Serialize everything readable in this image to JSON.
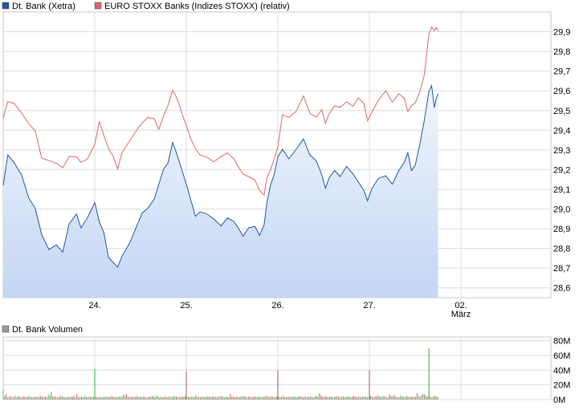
{
  "chart_data": [
    {
      "type": "line",
      "legend": [
        {
          "name": "Dt. Bank (Xetra)",
          "color": "#1f57a4"
        },
        {
          "name": "EURO STOXX Banks (Indizes STOXX) (relativ)",
          "color": "#e06666"
        }
      ],
      "x_tick_labels": [
        {
          "label": "24.",
          "sub": ""
        },
        {
          "label": "25.",
          "sub": ""
        },
        {
          "label": "26.",
          "sub": ""
        },
        {
          "label": "27.",
          "sub": ""
        },
        {
          "label": "02.",
          "sub": "März"
        }
      ],
      "y_ticks": [
        28.6,
        28.7,
        28.8,
        28.9,
        29.0,
        29.1,
        29.2,
        29.3,
        29.4,
        29.5,
        29.6,
        29.7,
        29.8,
        29.9
      ],
      "y_tick_labels": [
        "28,6",
        "28,7",
        "28,8",
        "28,9",
        "29,0",
        "29,1",
        "29,2",
        "29,3",
        "29,4",
        "29,5",
        "29,6",
        "29,7",
        "29,8",
        "29,9"
      ],
      "ylim": [
        28.55,
        30.0
      ],
      "grid": true,
      "series": [
        {
          "name": "Dt. Bank (Xetra)",
          "color": "#1f57a4",
          "fill": true,
          "points": [
            [
              0.0,
              29.12
            ],
            [
              0.05,
              29.28
            ],
            [
              0.12,
              29.24
            ],
            [
              0.2,
              29.17
            ],
            [
              0.28,
              29.05
            ],
            [
              0.35,
              29.0
            ],
            [
              0.42,
              28.87
            ],
            [
              0.5,
              28.8
            ],
            [
              0.58,
              28.82
            ],
            [
              0.65,
              28.78
            ],
            [
              0.72,
              28.92
            ],
            [
              0.8,
              28.97
            ],
            [
              0.85,
              28.9
            ],
            [
              0.92,
              28.95
            ],
            [
              1.0,
              29.03
            ],
            [
              1.05,
              28.93
            ],
            [
              1.1,
              28.88
            ],
            [
              1.15,
              28.76
            ],
            [
              1.2,
              28.73
            ],
            [
              1.25,
              28.7
            ],
            [
              1.3,
              28.76
            ],
            [
              1.38,
              28.82
            ],
            [
              1.45,
              28.9
            ],
            [
              1.52,
              28.98
            ],
            [
              1.58,
              29.0
            ],
            [
              1.65,
              29.05
            ],
            [
              1.7,
              29.12
            ],
            [
              1.75,
              29.2
            ],
            [
              1.8,
              29.24
            ],
            [
              1.85,
              29.34
            ],
            [
              1.88,
              29.3
            ],
            [
              1.92,
              29.25
            ],
            [
              1.96,
              29.18
            ],
            [
              2.0,
              29.13
            ],
            [
              2.05,
              29.05
            ],
            [
              2.1,
              28.96
            ],
            [
              2.15,
              28.98
            ],
            [
              2.22,
              28.97
            ],
            [
              2.3,
              28.95
            ],
            [
              2.38,
              28.92
            ],
            [
              2.45,
              28.96
            ],
            [
              2.52,
              28.94
            ],
            [
              2.58,
              28.9
            ],
            [
              2.62,
              28.86
            ],
            [
              2.68,
              28.9
            ],
            [
              2.75,
              28.91
            ],
            [
              2.8,
              28.86
            ],
            [
              2.85,
              28.92
            ],
            [
              2.88,
              29.03
            ],
            [
              2.92,
              29.12
            ],
            [
              2.96,
              29.18
            ],
            [
              3.0,
              29.26
            ],
            [
              3.05,
              29.3
            ],
            [
              3.12,
              29.25
            ],
            [
              3.2,
              29.3
            ],
            [
              3.28,
              29.36
            ],
            [
              3.35,
              29.28
            ],
            [
              3.42,
              29.25
            ],
            [
              3.48,
              29.18
            ],
            [
              3.52,
              29.1
            ],
            [
              3.56,
              29.16
            ],
            [
              3.62,
              29.2
            ],
            [
              3.68,
              29.17
            ],
            [
              3.75,
              29.22
            ],
            [
              3.82,
              29.18
            ],
            [
              3.88,
              29.14
            ],
            [
              3.94,
              29.1
            ],
            [
              3.98,
              29.04
            ],
            [
              4.03,
              29.1
            ],
            [
              4.1,
              29.15
            ],
            [
              4.18,
              29.17
            ],
            [
              4.25,
              29.13
            ],
            [
              4.32,
              29.2
            ],
            [
              4.38,
              29.24
            ],
            [
              4.42,
              29.28
            ],
            [
              4.46,
              29.2
            ],
            [
              4.5,
              29.22
            ],
            [
              4.55,
              29.32
            ],
            [
              4.6,
              29.45
            ],
            [
              4.65,
              29.6
            ],
            [
              4.68,
              29.62
            ],
            [
              4.71,
              29.52
            ],
            [
              4.73,
              29.56
            ],
            [
              4.75,
              29.58
            ]
          ]
        },
        {
          "name": "EURO STOXX Banks (Indizes STOXX) (relativ)",
          "color": "#e06666",
          "fill": false,
          "points": [
            [
              0.0,
              29.46
            ],
            [
              0.05,
              29.54
            ],
            [
              0.12,
              29.53
            ],
            [
              0.2,
              29.49
            ],
            [
              0.28,
              29.44
            ],
            [
              0.35,
              29.4
            ],
            [
              0.42,
              29.26
            ],
            [
              0.5,
              29.24
            ],
            [
              0.58,
              29.23
            ],
            [
              0.65,
              29.21
            ],
            [
              0.72,
              29.27
            ],
            [
              0.8,
              29.27
            ],
            [
              0.85,
              29.24
            ],
            [
              0.92,
              29.26
            ],
            [
              1.0,
              29.33
            ],
            [
              1.05,
              29.45
            ],
            [
              1.1,
              29.37
            ],
            [
              1.15,
              29.3
            ],
            [
              1.2,
              29.27
            ],
            [
              1.25,
              29.21
            ],
            [
              1.3,
              29.29
            ],
            [
              1.38,
              29.35
            ],
            [
              1.45,
              29.4
            ],
            [
              1.52,
              29.44
            ],
            [
              1.58,
              29.47
            ],
            [
              1.65,
              29.46
            ],
            [
              1.7,
              29.41
            ],
            [
              1.75,
              29.47
            ],
            [
              1.8,
              29.52
            ],
            [
              1.85,
              29.6
            ],
            [
              1.88,
              29.58
            ],
            [
              1.92,
              29.53
            ],
            [
              1.96,
              29.48
            ],
            [
              2.0,
              29.42
            ],
            [
              2.05,
              29.35
            ],
            [
              2.1,
              29.31
            ],
            [
              2.15,
              29.28
            ],
            [
              2.22,
              29.27
            ],
            [
              2.3,
              29.24
            ],
            [
              2.38,
              29.26
            ],
            [
              2.45,
              29.28
            ],
            [
              2.52,
              29.25
            ],
            [
              2.58,
              29.2
            ],
            [
              2.62,
              29.18
            ],
            [
              2.68,
              29.17
            ],
            [
              2.75,
              29.15
            ],
            [
              2.8,
              29.1
            ],
            [
              2.85,
              29.07
            ],
            [
              2.88,
              29.16
            ],
            [
              2.92,
              29.2
            ],
            [
              2.96,
              29.25
            ],
            [
              3.0,
              29.32
            ],
            [
              3.05,
              29.48
            ],
            [
              3.12,
              29.47
            ],
            [
              3.2,
              29.5
            ],
            [
              3.28,
              29.57
            ],
            [
              3.35,
              29.48
            ],
            [
              3.42,
              29.46
            ],
            [
              3.48,
              29.5
            ],
            [
              3.52,
              29.44
            ],
            [
              3.56,
              29.48
            ],
            [
              3.62,
              29.52
            ],
            [
              3.68,
              29.51
            ],
            [
              3.75,
              29.54
            ],
            [
              3.82,
              29.52
            ],
            [
              3.88,
              29.56
            ],
            [
              3.94,
              29.53
            ],
            [
              3.98,
              29.45
            ],
            [
              4.03,
              29.5
            ],
            [
              4.1,
              29.56
            ],
            [
              4.18,
              29.6
            ],
            [
              4.25,
              29.54
            ],
            [
              4.32,
              29.58
            ],
            [
              4.38,
              29.56
            ],
            [
              4.42,
              29.5
            ],
            [
              4.46,
              29.52
            ],
            [
              4.5,
              29.54
            ],
            [
              4.55,
              29.6
            ],
            [
              4.6,
              29.68
            ],
            [
              4.65,
              29.88
            ],
            [
              4.68,
              29.93
            ],
            [
              4.71,
              29.9
            ],
            [
              4.73,
              29.92
            ],
            [
              4.75,
              29.91
            ]
          ]
        }
      ]
    },
    {
      "type": "bar",
      "legend": [
        {
          "name": "Dt. Bank Volumen",
          "color": "#999999"
        }
      ],
      "y_tick_labels": [
        "0M",
        "20M",
        "40M",
        "60M",
        "80M"
      ],
      "y_ticks": [
        0,
        20,
        40,
        60,
        80
      ],
      "ylim": [
        0,
        85
      ],
      "grid": true,
      "bar_colors": {
        "normal": "#b07070",
        "highlight": "#55bb55"
      },
      "spikes": [
        {
          "x": 1.0,
          "value": 42,
          "highlight": true
        },
        {
          "x": 2.0,
          "value": 38,
          "highlight": false
        },
        {
          "x": 3.0,
          "value": 40,
          "highlight": false
        },
        {
          "x": 4.0,
          "value": 40,
          "highlight": false
        },
        {
          "x": 4.65,
          "value": 70,
          "highlight": true
        }
      ],
      "base_values": [
        14,
        5,
        8,
        3,
        4,
        4,
        3,
        4,
        5,
        3,
        5,
        4,
        3,
        4,
        4,
        3,
        4,
        5,
        4,
        3,
        3,
        4,
        4,
        3,
        4,
        5,
        4,
        3,
        4,
        3,
        7,
        5,
        10,
        4,
        4,
        4,
        3,
        3,
        5,
        4,
        4,
        3,
        3,
        4,
        3,
        4,
        4,
        5,
        3,
        8,
        4,
        3,
        4,
        3,
        5,
        4,
        3,
        4,
        4,
        3,
        4,
        5,
        4,
        3,
        4,
        3,
        4,
        3,
        4,
        4,
        3,
        4,
        5,
        4,
        3,
        4,
        3,
        4,
        4,
        4,
        7,
        5,
        8,
        4,
        3,
        4,
        3,
        4,
        4,
        5,
        3,
        4,
        3,
        4,
        4,
        3,
        3,
        4,
        4,
        5,
        4,
        3,
        6,
        4,
        3,
        4,
        3,
        4,
        4,
        3,
        4,
        4,
        3,
        4,
        5,
        4,
        3,
        4,
        3,
        4,
        4,
        5,
        3,
        4,
        3,
        4,
        4,
        3,
        6,
        4,
        4,
        3,
        4,
        4,
        3,
        5,
        4,
        4,
        3,
        4,
        4,
        4,
        3,
        4,
        4,
        5,
        4,
        3,
        4,
        4,
        3,
        8,
        4,
        5,
        3,
        4,
        4,
        3,
        4,
        4,
        5,
        4,
        3,
        4,
        4,
        3,
        4,
        4,
        4,
        3,
        4,
        4,
        3,
        4,
        4,
        5,
        4,
        3,
        4,
        4,
        3,
        4,
        4,
        4,
        3,
        4,
        5,
        4,
        3,
        4,
        4,
        3,
        4,
        4,
        4,
        3,
        4,
        5,
        4,
        3,
        4,
        4,
        3,
        4,
        4,
        4,
        3,
        4,
        5,
        4,
        9,
        6,
        4,
        3,
        5,
        4,
        3,
        4,
        4,
        3,
        4,
        4,
        5,
        4,
        3,
        4,
        4,
        3,
        4,
        4,
        4,
        3,
        4,
        5,
        4,
        3,
        4,
        4,
        3,
        4,
        4,
        4,
        3,
        4,
        5,
        4,
        3,
        4,
        4,
        6,
        4,
        4,
        3,
        5,
        4,
        3,
        4,
        7,
        4,
        5,
        6,
        4,
        3,
        3,
        6,
        4,
        4,
        3,
        5,
        4,
        3,
        4,
        4,
        3,
        4,
        9,
        5,
        4,
        6,
        8,
        7,
        5,
        4,
        6,
        4,
        3,
        4,
        5,
        4,
        3
      ]
    }
  ]
}
